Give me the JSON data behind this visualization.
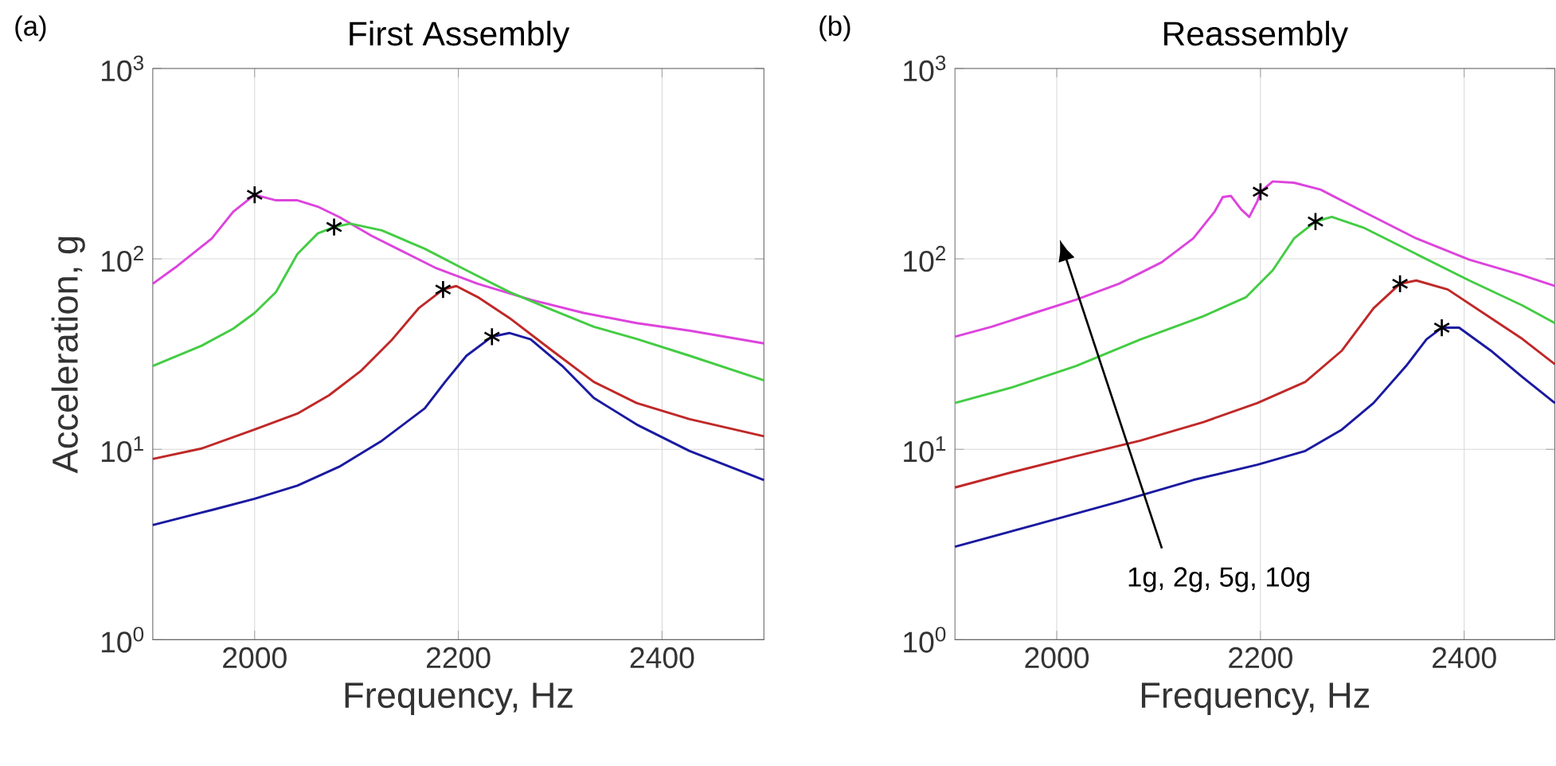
{
  "chart_data": [
    {
      "type": "line",
      "title": "First Assembly",
      "xlabel": "Frequency, Hz",
      "ylabel": "Acceleration, g",
      "log": "y",
      "grid": true,
      "xlim": [
        1900,
        2500
      ],
      "ylim": [
        1,
        1000
      ],
      "xticks": [
        2000,
        2200,
        2400
      ],
      "yticks": [
        {
          "value": 1,
          "label": "10$^{0}$"
        },
        {
          "value": 10,
          "label": "10$^{1}$"
        },
        {
          "value": 100,
          "label": "10$^{2}$"
        },
        {
          "value": 1000,
          "label": "10$^{3}$"
        }
      ],
      "annotations": [
        "(a)"
      ],
      "series": [
        {
          "color": "#dd44dd",
          "x": [
            1900,
            1922,
            1958,
            1979,
            2000,
            2021,
            2042,
            2062,
            2083,
            2115,
            2146,
            2177,
            2219,
            2271,
            2323,
            2375,
            2427,
            2500
          ],
          "values": [
            74,
            90,
            128,
            177,
            217,
            203,
            203,
            188,
            166,
            132,
            109,
            90,
            74,
            61,
            52,
            46,
            42,
            36
          ]
        },
        {
          "color": "#44cc44",
          "x": [
            1900,
            1948,
            1979,
            2000,
            2021,
            2042,
            2062,
            2078,
            2094,
            2125,
            2167,
            2208,
            2250,
            2292,
            2333,
            2375,
            2427,
            2500
          ],
          "values": [
            27.4,
            35,
            43,
            52,
            67,
            106,
            136,
            147,
            153,
            141,
            113,
            87,
            67,
            54,
            44,
            38,
            31,
            23
          ]
        },
        {
          "color": "#c02828",
          "x": [
            1900,
            1948,
            2000,
            2042,
            2073,
            2104,
            2135,
            2161,
            2185,
            2198,
            2219,
            2250,
            2292,
            2333,
            2375,
            2427,
            2500
          ],
          "values": [
            8.9,
            10.1,
            12.7,
            15.4,
            19.2,
            25.7,
            37.7,
            55,
            69,
            72,
            63,
            49,
            33,
            22.6,
            17.5,
            14.4,
            11.7
          ]
        },
        {
          "color": "#1a1aa0",
          "x": [
            1900,
            1958,
            2000,
            2042,
            2083,
            2125,
            2167,
            2187,
            2208,
            2233,
            2250,
            2271,
            2302,
            2333,
            2375,
            2427,
            2500
          ],
          "values": [
            4.0,
            4.8,
            5.5,
            6.45,
            8.1,
            11.1,
            16.4,
            22.6,
            31,
            39,
            40.8,
            37.8,
            27.4,
            18.6,
            13.5,
            9.8,
            6.9
          ]
        },
        {
          "type": "scatter",
          "color": "#000000",
          "marker": "cross",
          "x": [
            2000,
            2078,
            2185,
            2233
          ],
          "values": [
            217,
            147,
            69,
            39
          ]
        }
      ]
    },
    {
      "type": "line",
      "title": "Reassembly",
      "xlabel": "Frequency, Hz",
      "log": "y",
      "grid": true,
      "xlim": [
        1900,
        2489
      ],
      "ylim": [
        1,
        1000
      ],
      "xticks": [
        2000,
        2200,
        2400
      ],
      "yticks": [
        {
          "value": 1,
          "label": "10$^{0}$"
        },
        {
          "value": 10,
          "label": "10$^{1}$"
        },
        {
          "value": 100,
          "label": "10$^{2}$"
        },
        {
          "value": 1000,
          "label": "10$^{3}$"
        }
      ],
      "annotations": [
        "(b)",
        "1g, 2g, 5g, 10g"
      ],
      "series": [
        {
          "color": "#dd44dd",
          "x": [
            1900,
            1936,
            1978,
            2019,
            2061,
            2103,
            2134,
            2155,
            2163,
            2171,
            2181,
            2189,
            2197,
            2200,
            2212,
            2233,
            2259,
            2301,
            2353,
            2405,
            2457,
            2489
          ],
          "values": [
            39,
            44,
            52,
            61,
            74,
            96,
            128,
            177,
            211,
            214,
            182,
            166,
            201,
            225,
            255,
            251,
            231,
            177,
            128,
            99,
            82,
            72
          ]
        },
        {
          "color": "#44cc44",
          "x": [
            1900,
            1957,
            2019,
            2082,
            2144,
            2186,
            2212,
            2233,
            2254,
            2270,
            2301,
            2353,
            2405,
            2457,
            2489
          ],
          "values": [
            17.5,
            21.2,
            27.4,
            37.7,
            50,
            63,
            87,
            128,
            157,
            166,
            146,
            106,
            77,
            57,
            46
          ]
        },
        {
          "color": "#c02828",
          "x": [
            1900,
            1957,
            2019,
            2082,
            2144,
            2197,
            2244,
            2280,
            2311,
            2337,
            2353,
            2384,
            2426,
            2457,
            2489
          ],
          "values": [
            6.3,
            7.6,
            9.2,
            11.1,
            13.9,
            17.5,
            22.6,
            33,
            55,
            74,
            77,
            69,
            49,
            38,
            28
          ]
        },
        {
          "color": "#1a1aa0",
          "x": [
            1900,
            1978,
            2061,
            2134,
            2197,
            2244,
            2280,
            2311,
            2343,
            2363,
            2378,
            2395,
            2426,
            2457,
            2489
          ],
          "values": [
            3.08,
            4.0,
            5.3,
            6.9,
            8.3,
            9.8,
            12.7,
            17.5,
            27.4,
            37.8,
            43.5,
            43.5,
            33,
            24,
            17.5
          ]
        },
        {
          "type": "scatter",
          "color": "#000000",
          "marker": "cross",
          "x": [
            2200,
            2254,
            2337,
            2378
          ],
          "values": [
            225,
            157,
            74,
            43.5
          ]
        }
      ]
    }
  ]
}
